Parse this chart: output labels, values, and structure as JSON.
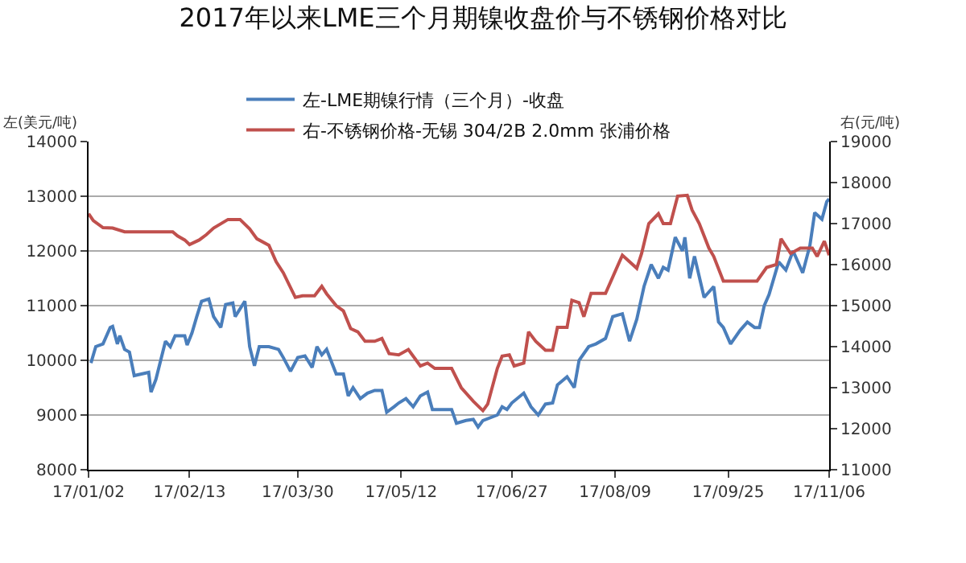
{
  "chart_data": {
    "type": "line",
    "title": "2017年以来LME三个月期镍收盘价与不锈钢价格对比",
    "ylabel": "左(美元/吨)",
    "y2label": "右(元/吨)",
    "xlim": [
      "2017-01-02",
      "2017-11-06"
    ],
    "xticks": [
      {
        "value": "2017-01-02",
        "label": "17/01/02"
      },
      {
        "value": "2017-02-13",
        "label": "17/02/13"
      },
      {
        "value": "2017-03-30",
        "label": "17/03/30"
      },
      {
        "value": "2017-05-12",
        "label": "17/05/12"
      },
      {
        "value": "2017-06-27",
        "label": "17/06/27"
      },
      {
        "value": "2017-08-09",
        "label": "17/08/09"
      },
      {
        "value": "2017-09-25",
        "label": "17/09/25"
      },
      {
        "value": "2017-11-06",
        "label": "17/11/06"
      }
    ],
    "ylim": [
      8000,
      14000
    ],
    "yticks": [
      8000,
      9000,
      10000,
      11000,
      12000,
      13000,
      14000
    ],
    "y2lim": [
      11000,
      19000
    ],
    "y2ticks": [
      11000,
      12000,
      13000,
      14000,
      15000,
      16000,
      17000,
      18000,
      19000
    ],
    "grid": "y",
    "legend": "top",
    "marker": "none",
    "line_style": "solid",
    "series": [
      {
        "name": "左-LME期镍行情（三个月）-收盘",
        "color": "#4a7ebb",
        "x": [
          "2017-01-03",
          "2017-01-05",
          "2017-01-08",
          "2017-01-11",
          "2017-01-12",
          "2017-01-14",
          "2017-01-15",
          "2017-01-17",
          "2017-01-19",
          "2017-01-21",
          "2017-01-24",
          "2017-01-27",
          "2017-01-28",
          "2017-01-30",
          "2017-02-01",
          "2017-02-03",
          "2017-02-05",
          "2017-02-07",
          "2017-02-11",
          "2017-02-12",
          "2017-02-14",
          "2017-02-16",
          "2017-02-18",
          "2017-02-21",
          "2017-02-23",
          "2017-02-26",
          "2017-02-28",
          "2017-03-03",
          "2017-03-04",
          "2017-03-08",
          "2017-03-10",
          "2017-03-12",
          "2017-03-14",
          "2017-03-18",
          "2017-03-22",
          "2017-03-24",
          "2017-03-27",
          "2017-03-30",
          "2017-04-02",
          "2017-04-05",
          "2017-04-07",
          "2017-04-09",
          "2017-04-11",
          "2017-04-15",
          "2017-04-18",
          "2017-04-20",
          "2017-04-22",
          "2017-04-25",
          "2017-04-28",
          "2017-05-01",
          "2017-05-04",
          "2017-05-06",
          "2017-05-09",
          "2017-05-11",
          "2017-05-14",
          "2017-05-17",
          "2017-05-20",
          "2017-05-23",
          "2017-05-25",
          "2017-05-29",
          "2017-06-02",
          "2017-06-04",
          "2017-06-08",
          "2017-06-11",
          "2017-06-13",
          "2017-06-15",
          "2017-06-21",
          "2017-06-23",
          "2017-06-25",
          "2017-06-27",
          "2017-07-02",
          "2017-07-05",
          "2017-07-08",
          "2017-07-11",
          "2017-07-14",
          "2017-07-16",
          "2017-07-20",
          "2017-07-23",
          "2017-07-25",
          "2017-07-29",
          "2017-08-01",
          "2017-08-05",
          "2017-08-08",
          "2017-08-12",
          "2017-08-15",
          "2017-08-18",
          "2017-08-21",
          "2017-08-24",
          "2017-08-27",
          "2017-08-29",
          "2017-08-31",
          "2017-09-03",
          "2017-09-06",
          "2017-09-07",
          "2017-09-09",
          "2017-09-11",
          "2017-09-15",
          "2017-09-19",
          "2017-09-21",
          "2017-09-23",
          "2017-09-26",
          "2017-09-30",
          "2017-10-03",
          "2017-10-06",
          "2017-10-08",
          "2017-10-10",
          "2017-10-12",
          "2017-10-16",
          "2017-10-19",
          "2017-10-22",
          "2017-10-26",
          "2017-10-29",
          "2017-10-31",
          "2017-11-03",
          "2017-11-05",
          "2017-11-06"
        ],
        "values": [
          9950,
          10250,
          10300,
          10600,
          10620,
          10300,
          10450,
          10200,
          10150,
          9720,
          9750,
          9780,
          9420,
          9650,
          10000,
          10350,
          10250,
          10450,
          10450,
          10280,
          10500,
          10800,
          11080,
          11120,
          10800,
          10600,
          11020,
          11050,
          10800,
          11080,
          10250,
          9900,
          10250,
          10250,
          10200,
          10050,
          9800,
          10050,
          10080,
          9870,
          10250,
          10100,
          10200,
          9750,
          9750,
          9350,
          9500,
          9300,
          9400,
          9450,
          9450,
          9050,
          9150,
          9220,
          9300,
          9150,
          9350,
          9420,
          9100,
          9100,
          9100,
          8850,
          8900,
          8920,
          8780,
          8900,
          9000,
          9150,
          9100,
          9220,
          9400,
          9150,
          9000,
          9200,
          9220,
          9550,
          9700,
          9500,
          10000,
          10250,
          10300,
          10400,
          10800,
          10850,
          10350,
          10750,
          11350,
          11750,
          11500,
          11700,
          11650,
          12250,
          12000,
          12250,
          11500,
          11900,
          11150,
          11350,
          10700,
          10600,
          10300,
          10550,
          10700,
          10600,
          10600,
          11000,
          11200,
          11800,
          11650,
          12000,
          11600,
          12100,
          12700,
          12580,
          12900,
          12950
        ]
      },
      {
        "name": "右-不锈钢价格-无锡 304/2B 2.0mm 张浦价格",
        "color": "#c0504d",
        "axis": "y2",
        "x": [
          "2017-01-02",
          "2017-01-04",
          "2017-01-08",
          "2017-01-12",
          "2017-01-17",
          "2017-02-06",
          "2017-02-08",
          "2017-02-11",
          "2017-02-13",
          "2017-02-17",
          "2017-02-20",
          "2017-02-23",
          "2017-03-01",
          "2017-03-06",
          "2017-03-10",
          "2017-03-13",
          "2017-03-18",
          "2017-03-21",
          "2017-03-24",
          "2017-03-29",
          "2017-04-01",
          "2017-04-06",
          "2017-04-09",
          "2017-04-11",
          "2017-04-15",
          "2017-04-18",
          "2017-04-21",
          "2017-04-24",
          "2017-04-27",
          "2017-05-01",
          "2017-05-04",
          "2017-05-07",
          "2017-05-11",
          "2017-05-15",
          "2017-05-20",
          "2017-05-23",
          "2017-05-26",
          "2017-06-02",
          "2017-06-06",
          "2017-06-11",
          "2017-06-15",
          "2017-06-17",
          "2017-06-21",
          "2017-06-23",
          "2017-06-26",
          "2017-06-28",
          "2017-07-02",
          "2017-07-04",
          "2017-07-07",
          "2017-07-11",
          "2017-07-14",
          "2017-07-16",
          "2017-07-20",
          "2017-07-22",
          "2017-07-25",
          "2017-07-27",
          "2017-07-30",
          "2017-08-05",
          "2017-08-12",
          "2017-08-18",
          "2017-08-20",
          "2017-08-23",
          "2017-08-27",
          "2017-08-29",
          "2017-09-01",
          "2017-09-04",
          "2017-09-08",
          "2017-09-10",
          "2017-09-13",
          "2017-09-17",
          "2017-09-19",
          "2017-09-23",
          "2017-10-07",
          "2017-10-11",
          "2017-10-15",
          "2017-10-17",
          "2017-10-21",
          "2017-10-25",
          "2017-10-30",
          "2017-11-01",
          "2017-11-04",
          "2017-11-06"
        ],
        "values": [
          17240,
          17070,
          16900,
          16890,
          16800,
          16800,
          16700,
          16600,
          16490,
          16600,
          16730,
          16890,
          17100,
          17100,
          16870,
          16630,
          16470,
          16070,
          15800,
          15200,
          15240,
          15240,
          15470,
          15290,
          15000,
          14870,
          14440,
          14360,
          14130,
          14130,
          14200,
          13830,
          13800,
          13930,
          13530,
          13600,
          13470,
          13470,
          13000,
          12670,
          12440,
          12600,
          13470,
          13770,
          13800,
          13530,
          13600,
          14360,
          14130,
          13910,
          13910,
          14470,
          14470,
          15130,
          15070,
          14730,
          15300,
          15300,
          16230,
          15910,
          16270,
          17000,
          17240,
          17000,
          17000,
          17670,
          17690,
          17330,
          17000,
          16400,
          16200,
          15600,
          15600,
          15930,
          16000,
          16630,
          16270,
          16400,
          16400,
          16200,
          16570,
          16230
        ]
      }
    ]
  }
}
